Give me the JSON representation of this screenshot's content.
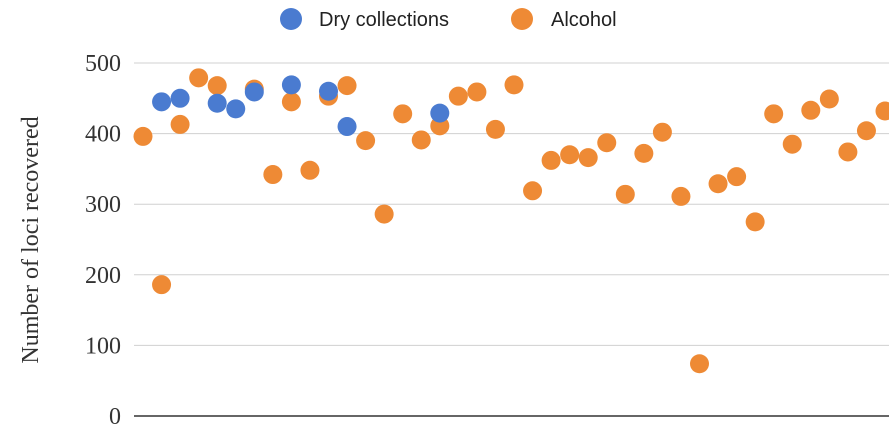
{
  "chart_data": {
    "type": "scatter",
    "title": "",
    "xlabel": "",
    "ylabel": "Number of loci recovered",
    "ylim": [
      0,
      500
    ],
    "yticks": [
      0,
      100,
      200,
      300,
      400,
      500
    ],
    "grid": true,
    "legend_position": "top-center",
    "series": [
      {
        "name": "Dry collections",
        "color": "#4a7bd0",
        "points": [
          {
            "x": 2,
            "y": 445
          },
          {
            "x": 3,
            "y": 450
          },
          {
            "x": 5,
            "y": 443
          },
          {
            "x": 6,
            "y": 435
          },
          {
            "x": 7,
            "y": 459
          },
          {
            "x": 9,
            "y": 469
          },
          {
            "x": 11,
            "y": 460
          },
          {
            "x": 12,
            "y": 410
          },
          {
            "x": 17,
            "y": 429
          }
        ]
      },
      {
        "name": "Alcohol",
        "color": "#ee8a35",
        "points": [
          {
            "x": 1,
            "y": 396
          },
          {
            "x": 2,
            "y": 186
          },
          {
            "x": 3,
            "y": 413
          },
          {
            "x": 4,
            "y": 479
          },
          {
            "x": 5,
            "y": 468
          },
          {
            "x": 7,
            "y": 463
          },
          {
            "x": 8,
            "y": 342
          },
          {
            "x": 9,
            "y": 445
          },
          {
            "x": 10,
            "y": 348
          },
          {
            "x": 11,
            "y": 453
          },
          {
            "x": 12,
            "y": 468
          },
          {
            "x": 13,
            "y": 390
          },
          {
            "x": 14,
            "y": 286
          },
          {
            "x": 15,
            "y": 428
          },
          {
            "x": 16,
            "y": 391
          },
          {
            "x": 17,
            "y": 411
          },
          {
            "x": 18,
            "y": 453
          },
          {
            "x": 19,
            "y": 459
          },
          {
            "x": 20,
            "y": 406
          },
          {
            "x": 21,
            "y": 469
          },
          {
            "x": 22,
            "y": 319
          },
          {
            "x": 23,
            "y": 362
          },
          {
            "x": 24,
            "y": 370
          },
          {
            "x": 25,
            "y": 366
          },
          {
            "x": 26,
            "y": 387
          },
          {
            "x": 27,
            "y": 314
          },
          {
            "x": 28,
            "y": 372
          },
          {
            "x": 29,
            "y": 402
          },
          {
            "x": 30,
            "y": 311
          },
          {
            "x": 31,
            "y": 74
          },
          {
            "x": 32,
            "y": 329
          },
          {
            "x": 33,
            "y": 339
          },
          {
            "x": 34,
            "y": 275
          },
          {
            "x": 35,
            "y": 428
          },
          {
            "x": 36,
            "y": 385
          },
          {
            "x": 37,
            "y": 433
          },
          {
            "x": 38,
            "y": 449
          },
          {
            "x": 39,
            "y": 374
          },
          {
            "x": 40,
            "y": 404
          },
          {
            "x": 41,
            "y": 432
          }
        ]
      }
    ]
  }
}
